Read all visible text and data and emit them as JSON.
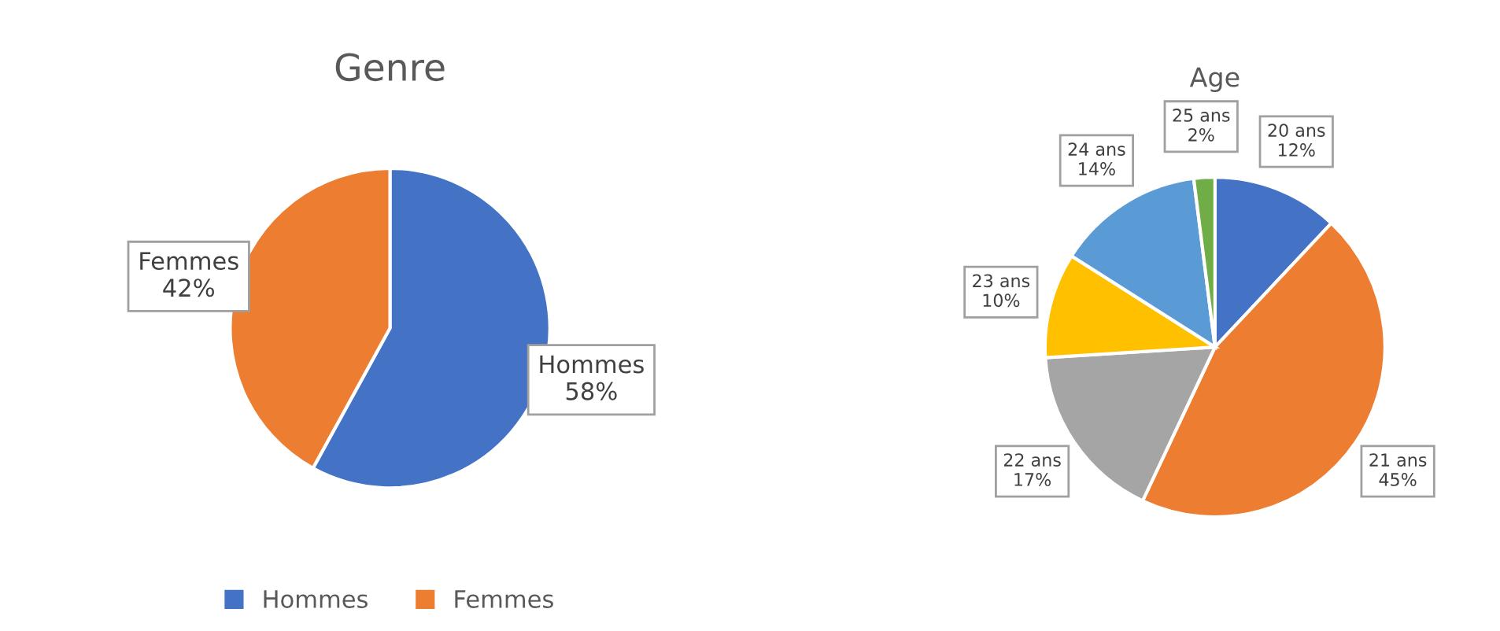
{
  "chart_data": [
    {
      "type": "pie",
      "title": "Genre",
      "categories": [
        "Hommes",
        "Femmes"
      ],
      "values": [
        58,
        42
      ],
      "colors": [
        "#4472c4",
        "#ed7d31"
      ],
      "value_labels": [
        "58%",
        "42%"
      ],
      "legend": "bottom"
    },
    {
      "type": "pie",
      "title": "Age",
      "categories": [
        "20 ans",
        "21 ans",
        "22 ans",
        "23 ans",
        "24 ans",
        "25 ans"
      ],
      "values": [
        12,
        45,
        17,
        10,
        14,
        2
      ],
      "colors": [
        "#4472c4",
        "#ed7d31",
        "#a5a5a5",
        "#ffc000",
        "#5b9bd5",
        "#70ad47"
      ],
      "value_labels": [
        "12%",
        "45%",
        "17%",
        "10%",
        "14%",
        "2%"
      ]
    }
  ]
}
